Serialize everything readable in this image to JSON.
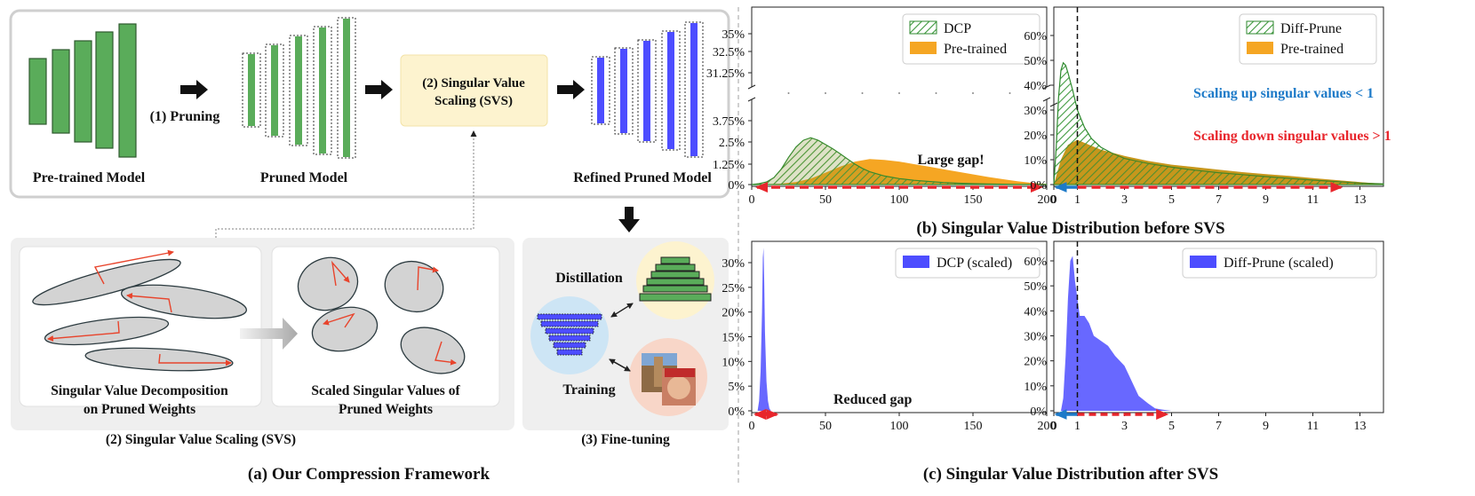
{
  "framework": {
    "caption": "(a) Our Compression Framework",
    "pretrained_label": "Pre-trained Model",
    "pruning_label": "(1) Pruning",
    "pruned_label": "Pruned Model",
    "svs_line1": "(2) Singular Value",
    "svs_line2": "Scaling (SVS)",
    "refined_label": "Refined Pruned Model",
    "svd_line1": "Singular Value Decomposition",
    "svd_line2": "on Pruned Weights",
    "scaled_line1": "Scaled Singular Values of",
    "scaled_line2": "Pruned Weights",
    "svs_panel_caption": "(2) Singular Value Scaling (SVS)",
    "distillation_label": "Distillation",
    "training_label": "Training",
    "finetune_caption": "(3) Fine-tuning",
    "colors": {
      "green": "#5aac5a",
      "blue": "#4d4dff",
      "svs_box": "#fdf3cf",
      "panel": "#efefef",
      "red_arrow": "#e8442c"
    }
  },
  "captions": {
    "before": "(b) Singular Value Distribution before SVS",
    "after": "(c) Singular Value Distribution after SVS"
  },
  "chart_data": [
    {
      "type": "area",
      "legend": [
        "DCP",
        "Pre-trained"
      ],
      "legend_position": "top-right",
      "x_ticks": [
        "0",
        "50",
        "100",
        "150",
        "200"
      ],
      "y_ticks_upper": [
        "35%",
        "32.5%",
        "31.25%"
      ],
      "y_ticks_lower": [
        "3.75%",
        "2.5%",
        "1.25%",
        "0%"
      ],
      "xlim": [
        0,
        200
      ],
      "annotation": "Large gap!",
      "series": [
        {
          "name": "DCP",
          "x": [
            0,
            5,
            10,
            15,
            20,
            25,
            30,
            35,
            40,
            45,
            50,
            55,
            60,
            65,
            70,
            75,
            80,
            90,
            100,
            110,
            120,
            130,
            140,
            150,
            160,
            170,
            180,
            190,
            200
          ],
          "y": [
            0,
            0.05,
            0.15,
            0.4,
            0.9,
            1.6,
            2.2,
            2.6,
            2.75,
            2.6,
            2.35,
            2.1,
            1.8,
            1.5,
            1.2,
            0.95,
            0.75,
            0.5,
            0.35,
            0.25,
            0.18,
            0.12,
            0.08,
            0.05,
            0.03,
            0.02,
            0.01,
            0.005,
            0
          ]
        },
        {
          "name": "Pre-trained",
          "x": [
            0,
            10,
            20,
            30,
            40,
            50,
            60,
            70,
            80,
            90,
            100,
            110,
            120,
            130,
            140,
            150,
            160,
            170,
            180,
            190,
            200
          ],
          "y": [
            0,
            0.02,
            0.05,
            0.15,
            0.35,
            0.7,
            1.05,
            1.35,
            1.5,
            1.45,
            1.35,
            1.2,
            1.05,
            0.9,
            0.75,
            0.6,
            0.45,
            0.32,
            0.2,
            0.1,
            0.03
          ]
        }
      ]
    },
    {
      "type": "area",
      "legend": [
        "Diff-Prune",
        "Pre-trained"
      ],
      "legend_position": "top-right",
      "x_ticks": [
        "0",
        "1",
        "3",
        "5",
        "7",
        "9",
        "11",
        "13"
      ],
      "y_ticks": [
        "0%",
        "10%",
        "20%",
        "30%",
        "40%",
        "50%",
        "60%"
      ],
      "xlim": [
        0,
        14
      ],
      "ylim": [
        0,
        65
      ],
      "reference_line_x": 1,
      "annotations": [
        "Scaling up singular values < 1",
        "Scaling down singular values > 1"
      ],
      "series": [
        {
          "name": "Diff-Prune",
          "x": [
            0,
            0.1,
            0.2,
            0.3,
            0.4,
            0.5,
            0.6,
            0.8,
            1,
            1.3,
            1.6,
            2,
            2.5,
            3,
            4,
            5,
            6,
            7,
            8,
            9,
            10,
            11,
            12,
            13,
            14
          ],
          "y": [
            0,
            15,
            35,
            46,
            49,
            48,
            45,
            38,
            30,
            23,
            18.5,
            15,
            12.5,
            10.5,
            8.5,
            7,
            5.8,
            4.8,
            4,
            3.2,
            2.5,
            1.8,
            1.2,
            0.6,
            0.3
          ]
        },
        {
          "name": "Pre-trained",
          "x": [
            0,
            0.3,
            0.6,
            1,
            1.5,
            2,
            3,
            4,
            5,
            6,
            7,
            8,
            9,
            10,
            11,
            12,
            13,
            14
          ],
          "y": [
            0,
            10,
            16,
            18,
            16,
            14,
            11.5,
            9.5,
            8,
            7,
            6,
            5,
            4.2,
            3.5,
            2.6,
            1.8,
            1,
            0.3
          ]
        }
      ]
    },
    {
      "type": "area",
      "legend": [
        "DCP (scaled)"
      ],
      "legend_position": "top-right",
      "x_ticks": [
        "0",
        "50",
        "100",
        "150",
        "200"
      ],
      "y_ticks": [
        "0%",
        "5%",
        "10%",
        "15%",
        "20%",
        "25%",
        "30%"
      ],
      "xlim": [
        0,
        200
      ],
      "ylim": [
        0,
        35
      ],
      "annotation": "Reduced gap",
      "series": [
        {
          "name": "DCP (scaled)",
          "x": [
            0,
            4,
            5,
            6,
            7,
            7.5,
            8,
            8.5,
            9,
            10,
            11,
            12,
            13,
            200
          ],
          "y": [
            0,
            0,
            2,
            8,
            20,
            31,
            33,
            26,
            16,
            6,
            2,
            0.5,
            0,
            0
          ]
        }
      ]
    },
    {
      "type": "area",
      "legend": [
        "Diff-Prune (scaled)"
      ],
      "legend_position": "top-right",
      "x_ticks": [
        "0",
        "1",
        "3",
        "5",
        "7",
        "9",
        "11",
        "13"
      ],
      "y_ticks": [
        "0%",
        "10%",
        "20%",
        "30%",
        "40%",
        "50%",
        "60%"
      ],
      "xlim": [
        0,
        14
      ],
      "ylim": [
        0,
        65
      ],
      "reference_line_x": 1,
      "series": [
        {
          "name": "Diff-Prune (scaled)",
          "x": [
            0.3,
            0.4,
            0.5,
            0.6,
            0.7,
            0.8,
            0.9,
            1,
            1.1,
            1.3,
            1.5,
            1.7,
            2,
            2.3,
            2.6,
            3,
            3.3,
            3.6,
            4,
            4.3,
            4.6,
            5
          ],
          "y": [
            0,
            5,
            22,
            45,
            60,
            62,
            52,
            45,
            38,
            38,
            35,
            30,
            28,
            26,
            22,
            18,
            12,
            6,
            3,
            1,
            0.5,
            0
          ]
        }
      ]
    }
  ]
}
